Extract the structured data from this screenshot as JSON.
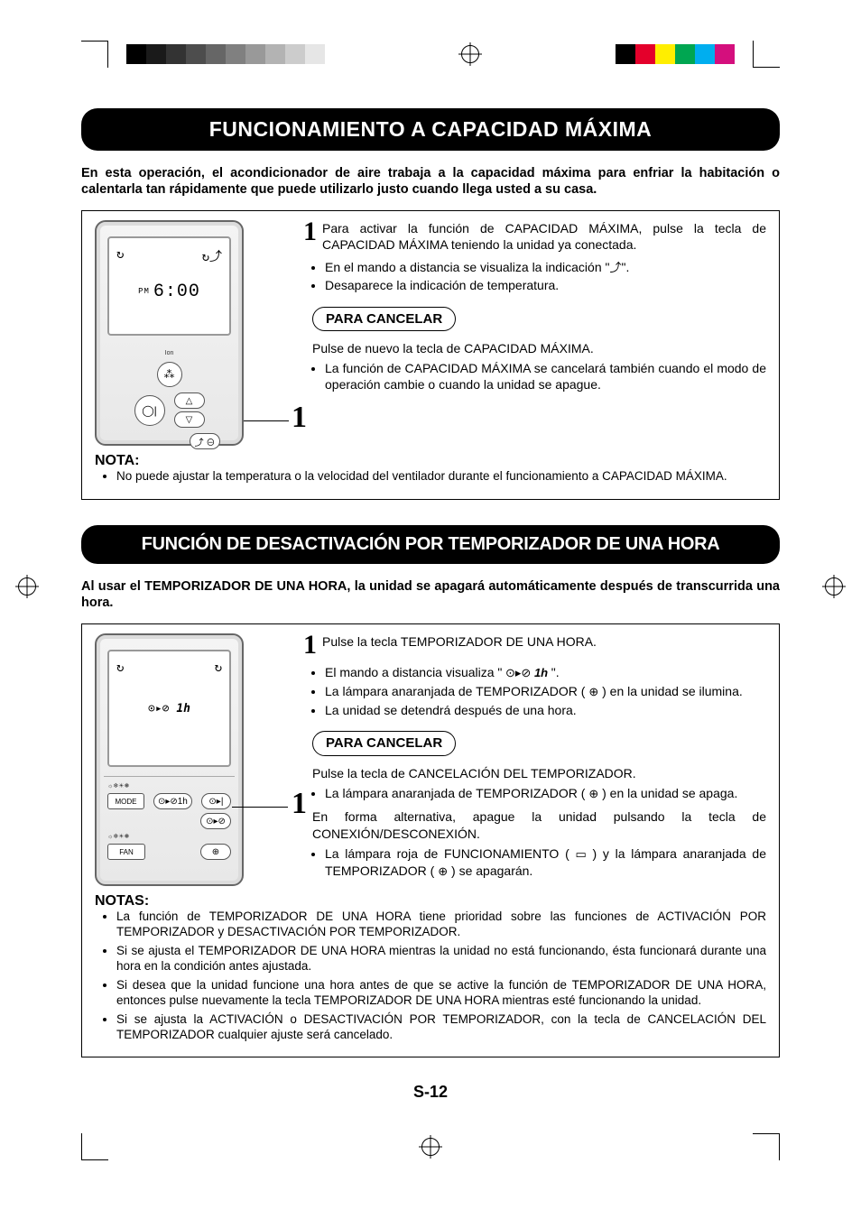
{
  "registration": {
    "gray_swatches": [
      "#000000",
      "#1a1a1a",
      "#333333",
      "#4d4d4d",
      "#666666",
      "#808080",
      "#999999",
      "#b3b3b3",
      "#cccccc",
      "#e6e6e6"
    ],
    "color_swatches": [
      "#000000",
      "#e4002b",
      "#ffee00",
      "#00a651",
      "#00aeef",
      "#d40f7d"
    ]
  },
  "section1": {
    "title": "FUNCIONAMIENTO A CAPACIDAD MÁXIMA",
    "intro": "En esta operación, el acondicionador de aire trabaja a la capacidad máxima para enfriar la habitación o calentarla tan rápidamente que puede utilizarlo justo cuando llega usted a su casa.",
    "remote": {
      "ampm": "PM",
      "time": "6:00",
      "callout": "1"
    },
    "step_num": "1",
    "step_text": "Para activar la función de CAPACIDAD MÁXIMA, pulse la tecla de CAPACIDAD MÁXIMA teniendo la unidad ya conectada.",
    "step_bullet1_a": "En el mando a distancia se visualiza la indicación \"",
    "step_bullet1_b": "\".",
    "step_bullet2": "Desaparece la indicación de temperatura.",
    "cancel_label": "PARA CANCELAR",
    "cancel_text": "Pulse de nuevo la tecla de CAPACIDAD MÁXIMA.",
    "cancel_bullet": "La función de CAPACIDAD MÁXIMA se cancelará también cuando el modo de operación cambie o cuando la unidad se apague.",
    "nota_head": "NOTA:",
    "nota_bullet": "No puede ajustar la temperatura o la velocidad del ventilador durante el funcionamiento a CAPACIDAD MÁXIMA."
  },
  "section2": {
    "title": "FUNCIÓN DE DESACTIVACIÓN POR TEMPORIZADOR DE UNA HORA",
    "intro": "Al usar el TEMPORIZADOR DE UNA HORA, la unidad se apagará automáticamente después de transcurrida una hora.",
    "remote": {
      "timer_text": "1h",
      "mode_label": "MODE",
      "fan_label": "FAN",
      "callout": "1"
    },
    "step_num": "1",
    "step_text": "Pulse la tecla TEMPORIZADOR DE UNA HORA.",
    "step_b1_a": "El mando a distancia visualiza \"",
    "step_b1_b": "\".",
    "step_b2_a": "La lámpara anaranjada de TEMPORIZADOR (",
    "step_b2_b": ") en la unidad se ilumina.",
    "step_b3": "La unidad se detendrá después de una hora.",
    "cancel_label": "PARA CANCELAR",
    "cancel_text": "Pulse la tecla de CANCELACIÓN DEL TEMPORIZADOR.",
    "cancel_b1_a": "La lámpara anaranjada de TEMPORIZADOR (",
    "cancel_b1_b": ") en la unidad se apaga.",
    "alt_text": "En forma alternativa, apague la unidad pulsando la tecla de CONEXIÓN/DESCONEXIÓN.",
    "alt_b_a": "La lámpara roja de FUNCIONAMIENTO (",
    "alt_b_b": ") y la lámpara anaranjada de TEMPORIZADOR (",
    "alt_b_c": ") se apagarán.",
    "notas_head": "NOTAS:",
    "notas": [
      "La función de TEMPORIZADOR DE UNA HORA tiene prioridad sobre las funciones de ACTIVACIÓN POR TEMPORIZADOR y DESACTIVACIÓN POR TEMPORIZADOR.",
      "Si se ajusta el TEMPORIZADOR DE UNA HORA mientras la unidad no está funcionando, ésta funcionará durante una hora en la condición antes ajustada.",
      "Si desea que la unidad funcione una hora antes de que se active la función de TEMPORIZADOR DE UNA HORA, entonces pulse nuevamente la tecla TEMPORIZADOR DE UNA HORA mientras esté funcionando la unidad.",
      "Si se ajusta la ACTIVACIÓN o DESACTIVACIÓN POR TEMPORIZADOR, con la tecla de CANCELACIÓN DEL TEMPORIZADOR cualquier ajuste será cancelado."
    ]
  },
  "page_number": "S-12"
}
